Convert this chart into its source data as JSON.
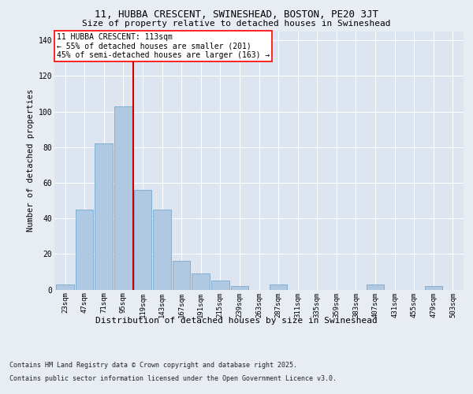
{
  "title1": "11, HUBBA CRESCENT, SWINESHEAD, BOSTON, PE20 3JT",
  "title2": "Size of property relative to detached houses in Swineshead",
  "xlabel": "Distribution of detached houses by size in Swineshead",
  "ylabel": "Number of detached properties",
  "footer1": "Contains HM Land Registry data © Crown copyright and database right 2025.",
  "footer2": "Contains public sector information licensed under the Open Government Licence v3.0.",
  "annotation_line1": "11 HUBBA CRESCENT: 113sqm",
  "annotation_line2": "← 55% of detached houses are smaller (201)",
  "annotation_line3": "45% of semi-detached houses are larger (163) →",
  "bar_color": "#afc9e3",
  "bar_edge_color": "#6a9fc8",
  "vline_color": "#cc0000",
  "vline_x_index": 3.5,
  "background_color": "#e8edf4",
  "plot_bg_color": "#dce5f0",
  "grid_color": "#ffffff",
  "categories": [
    "23sqm",
    "47sqm",
    "71sqm",
    "95sqm",
    "119sqm",
    "143sqm",
    "167sqm",
    "191sqm",
    "215sqm",
    "239sqm",
    "263sqm",
    "287sqm",
    "311sqm",
    "335sqm",
    "359sqm",
    "383sqm",
    "407sqm",
    "431sqm",
    "455sqm",
    "479sqm",
    "503sqm"
  ],
  "values": [
    3,
    45,
    82,
    103,
    56,
    45,
    16,
    9,
    5,
    2,
    0,
    3,
    0,
    0,
    0,
    0,
    3,
    0,
    0,
    2,
    0
  ],
  "ylim": [
    0,
    145
  ],
  "yticks": [
    0,
    20,
    40,
    60,
    80,
    100,
    120,
    140
  ],
  "title1_fontsize": 9,
  "title2_fontsize": 8,
  "ylabel_fontsize": 7.5,
  "xlabel_fontsize": 8,
  "tick_fontsize": 6.5,
  "annotation_fontsize": 7,
  "footer_fontsize": 6
}
